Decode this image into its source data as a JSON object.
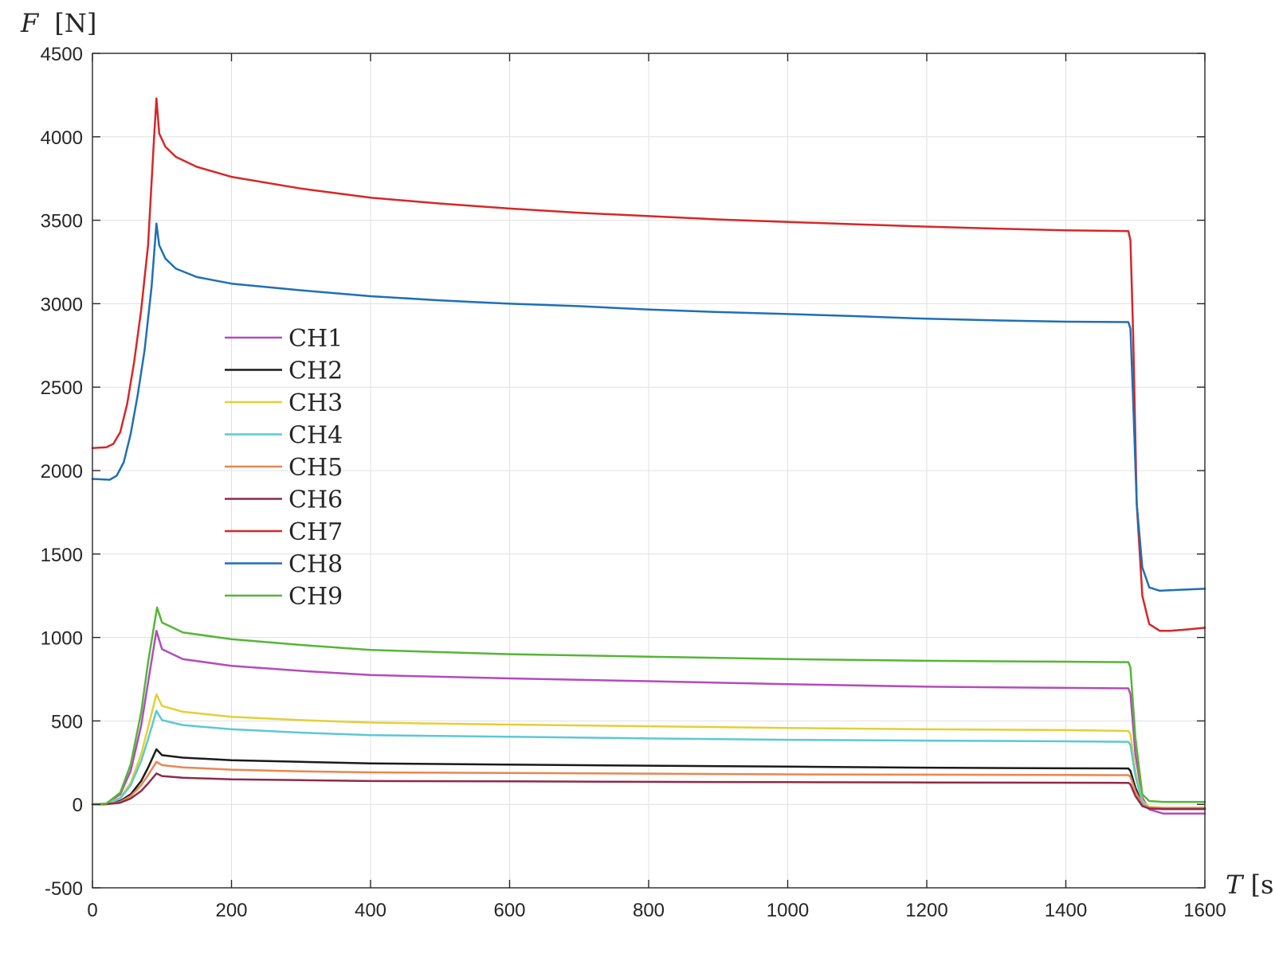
{
  "chart_data": {
    "type": "line",
    "title": "",
    "xlabel": {
      "var": "T",
      "unit": "[s]"
    },
    "ylabel": {
      "var": "F",
      "unit": "[N]"
    },
    "xlim": [
      0,
      1600
    ],
    "ylim": [
      -500,
      4500
    ],
    "xticks": [
      0,
      200,
      400,
      600,
      800,
      1000,
      1200,
      1400,
      1600
    ],
    "yticks": [
      -500,
      0,
      500,
      1000,
      1500,
      2000,
      2500,
      3000,
      3500,
      4000,
      4500
    ],
    "xtick_labels": [
      "0",
      "200",
      "400",
      "600",
      "800",
      "1000",
      "1200",
      "1400",
      "1600"
    ],
    "ytick_labels": [
      "-500",
      "0",
      "500",
      "1000",
      "1500",
      "2000",
      "2500",
      "3000",
      "3500",
      "4000",
      "4500"
    ],
    "grid": true,
    "legend_position": "left",
    "series": [
      {
        "name": "CH1",
        "color": "#b44bbd",
        "points": [
          [
            0,
            0
          ],
          [
            20,
            5
          ],
          [
            40,
            60
          ],
          [
            55,
            200
          ],
          [
            70,
            470
          ],
          [
            80,
            730
          ],
          [
            92,
            1040
          ],
          [
            100,
            930
          ],
          [
            130,
            870
          ],
          [
            200,
            830
          ],
          [
            300,
            800
          ],
          [
            400,
            775
          ],
          [
            600,
            755
          ],
          [
            800,
            738
          ],
          [
            1000,
            720
          ],
          [
            1200,
            705
          ],
          [
            1400,
            698
          ],
          [
            1490,
            695
          ],
          [
            1493,
            660
          ],
          [
            1500,
            300
          ],
          [
            1510,
            40
          ],
          [
            1520,
            -30
          ],
          [
            1540,
            -55
          ],
          [
            1600,
            -55
          ]
        ]
      },
      {
        "name": "CH2",
        "color": "#1a1a1a",
        "points": [
          [
            0,
            0
          ],
          [
            20,
            2
          ],
          [
            40,
            20
          ],
          [
            55,
            60
          ],
          [
            70,
            140
          ],
          [
            80,
            220
          ],
          [
            92,
            330
          ],
          [
            100,
            295
          ],
          [
            130,
            280
          ],
          [
            200,
            265
          ],
          [
            300,
            255
          ],
          [
            400,
            245
          ],
          [
            600,
            238
          ],
          [
            800,
            232
          ],
          [
            1000,
            226
          ],
          [
            1200,
            220
          ],
          [
            1400,
            216
          ],
          [
            1490,
            215
          ],
          [
            1493,
            200
          ],
          [
            1500,
            100
          ],
          [
            1510,
            0
          ],
          [
            1520,
            -20
          ],
          [
            1540,
            -25
          ],
          [
            1600,
            -25
          ]
        ]
      },
      {
        "name": "CH3",
        "color": "#e3d036",
        "points": [
          [
            0,
            0
          ],
          [
            20,
            3
          ],
          [
            40,
            40
          ],
          [
            55,
            130
          ],
          [
            70,
            300
          ],
          [
            80,
            460
          ],
          [
            92,
            660
          ],
          [
            100,
            590
          ],
          [
            130,
            555
          ],
          [
            200,
            525
          ],
          [
            300,
            505
          ],
          [
            400,
            490
          ],
          [
            600,
            478
          ],
          [
            800,
            468
          ],
          [
            1000,
            458
          ],
          [
            1200,
            450
          ],
          [
            1400,
            445
          ],
          [
            1490,
            440
          ],
          [
            1493,
            420
          ],
          [
            1500,
            200
          ],
          [
            1510,
            20
          ],
          [
            1520,
            -15
          ],
          [
            1540,
            -20
          ],
          [
            1600,
            -20
          ]
        ]
      },
      {
        "name": "CH4",
        "color": "#5cc8d4",
        "points": [
          [
            0,
            0
          ],
          [
            20,
            3
          ],
          [
            40,
            35
          ],
          [
            55,
            115
          ],
          [
            70,
            260
          ],
          [
            80,
            390
          ],
          [
            92,
            560
          ],
          [
            100,
            505
          ],
          [
            130,
            475
          ],
          [
            200,
            450
          ],
          [
            300,
            430
          ],
          [
            400,
            415
          ],
          [
            600,
            405
          ],
          [
            800,
            395
          ],
          [
            1000,
            387
          ],
          [
            1200,
            382
          ],
          [
            1400,
            378
          ],
          [
            1490,
            375
          ],
          [
            1493,
            355
          ],
          [
            1500,
            170
          ],
          [
            1510,
            10
          ],
          [
            1520,
            -20
          ],
          [
            1540,
            -25
          ],
          [
            1600,
            -25
          ]
        ]
      },
      {
        "name": "CH5",
        "color": "#e88650",
        "points": [
          [
            0,
            0
          ],
          [
            20,
            2
          ],
          [
            40,
            15
          ],
          [
            55,
            50
          ],
          [
            70,
            115
          ],
          [
            80,
            175
          ],
          [
            92,
            255
          ],
          [
            100,
            235
          ],
          [
            130,
            222
          ],
          [
            200,
            208
          ],
          [
            300,
            198
          ],
          [
            400,
            192
          ],
          [
            600,
            188
          ],
          [
            800,
            184
          ],
          [
            1000,
            180
          ],
          [
            1200,
            178
          ],
          [
            1400,
            176
          ],
          [
            1490,
            175
          ],
          [
            1493,
            165
          ],
          [
            1500,
            80
          ],
          [
            1510,
            -5
          ],
          [
            1520,
            -20
          ],
          [
            1540,
            -22
          ],
          [
            1600,
            -22
          ]
        ]
      },
      {
        "name": "CH6",
        "color": "#8e2a4a",
        "points": [
          [
            0,
            0
          ],
          [
            20,
            1
          ],
          [
            40,
            10
          ],
          [
            55,
            35
          ],
          [
            70,
            80
          ],
          [
            80,
            125
          ],
          [
            92,
            185
          ],
          [
            100,
            170
          ],
          [
            130,
            160
          ],
          [
            200,
            150
          ],
          [
            300,
            145
          ],
          [
            400,
            140
          ],
          [
            600,
            138
          ],
          [
            800,
            135
          ],
          [
            1000,
            133
          ],
          [
            1200,
            131
          ],
          [
            1400,
            130
          ],
          [
            1490,
            129
          ],
          [
            1493,
            120
          ],
          [
            1500,
            50
          ],
          [
            1510,
            -10
          ],
          [
            1520,
            -25
          ],
          [
            1540,
            -28
          ],
          [
            1600,
            -28
          ]
        ]
      },
      {
        "name": "CH7",
        "color": "#d62728",
        "points": [
          [
            0,
            2135
          ],
          [
            20,
            2140
          ],
          [
            30,
            2160
          ],
          [
            40,
            2230
          ],
          [
            50,
            2400
          ],
          [
            60,
            2650
          ],
          [
            70,
            2960
          ],
          [
            80,
            3350
          ],
          [
            88,
            3950
          ],
          [
            92,
            4230
          ],
          [
            96,
            4020
          ],
          [
            105,
            3940
          ],
          [
            120,
            3880
          ],
          [
            150,
            3820
          ],
          [
            200,
            3760
          ],
          [
            300,
            3690
          ],
          [
            400,
            3635
          ],
          [
            500,
            3600
          ],
          [
            600,
            3570
          ],
          [
            700,
            3545
          ],
          [
            800,
            3525
          ],
          [
            900,
            3505
          ],
          [
            1000,
            3490
          ],
          [
            1100,
            3475
          ],
          [
            1200,
            3462
          ],
          [
            1300,
            3450
          ],
          [
            1400,
            3440
          ],
          [
            1490,
            3435
          ],
          [
            1493,
            3380
          ],
          [
            1497,
            2800
          ],
          [
            1502,
            1800
          ],
          [
            1510,
            1250
          ],
          [
            1520,
            1080
          ],
          [
            1535,
            1040
          ],
          [
            1550,
            1040
          ],
          [
            1575,
            1048
          ],
          [
            1600,
            1058
          ]
        ]
      },
      {
        "name": "CH8",
        "color": "#1f6fb5",
        "points": [
          [
            0,
            1950
          ],
          [
            25,
            1945
          ],
          [
            35,
            1970
          ],
          [
            45,
            2050
          ],
          [
            55,
            2220
          ],
          [
            65,
            2450
          ],
          [
            75,
            2720
          ],
          [
            85,
            3100
          ],
          [
            92,
            3480
          ],
          [
            96,
            3350
          ],
          [
            105,
            3270
          ],
          [
            120,
            3210
          ],
          [
            150,
            3160
          ],
          [
            200,
            3120
          ],
          [
            300,
            3080
          ],
          [
            400,
            3045
          ],
          [
            500,
            3020
          ],
          [
            600,
            3000
          ],
          [
            700,
            2985
          ],
          [
            800,
            2965
          ],
          [
            900,
            2950
          ],
          [
            1000,
            2938
          ],
          [
            1100,
            2925
          ],
          [
            1200,
            2910
          ],
          [
            1300,
            2900
          ],
          [
            1400,
            2892
          ],
          [
            1490,
            2890
          ],
          [
            1493,
            2850
          ],
          [
            1497,
            2400
          ],
          [
            1502,
            1800
          ],
          [
            1510,
            1420
          ],
          [
            1520,
            1300
          ],
          [
            1535,
            1280
          ],
          [
            1560,
            1285
          ],
          [
            1600,
            1292
          ]
        ]
      },
      {
        "name": "CH9",
        "color": "#55b538",
        "points": [
          [
            0,
            0
          ],
          [
            20,
            5
          ],
          [
            40,
            70
          ],
          [
            55,
            240
          ],
          [
            70,
            550
          ],
          [
            80,
            850
          ],
          [
            93,
            1180
          ],
          [
            100,
            1090
          ],
          [
            130,
            1030
          ],
          [
            200,
            990
          ],
          [
            300,
            955
          ],
          [
            400,
            925
          ],
          [
            600,
            900
          ],
          [
            800,
            885
          ],
          [
            1000,
            870
          ],
          [
            1200,
            860
          ],
          [
            1400,
            855
          ],
          [
            1490,
            852
          ],
          [
            1493,
            820
          ],
          [
            1500,
            400
          ],
          [
            1510,
            60
          ],
          [
            1520,
            20
          ],
          [
            1540,
            15
          ],
          [
            1600,
            15
          ]
        ]
      }
    ]
  }
}
